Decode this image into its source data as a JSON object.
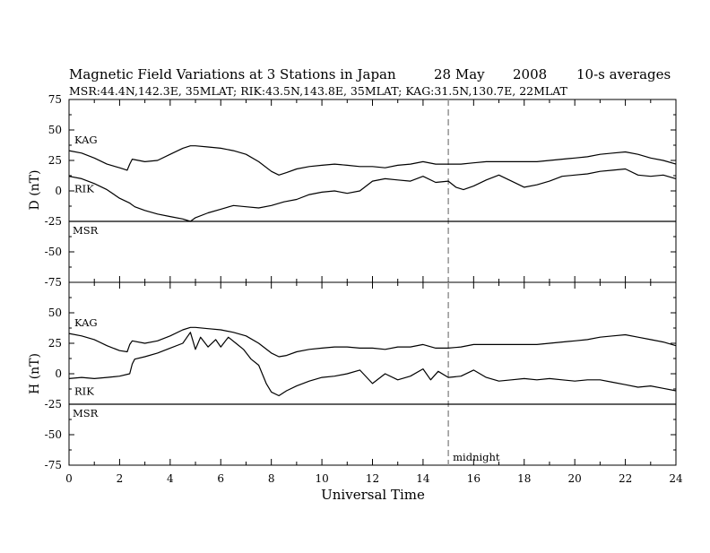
{
  "title": {
    "text": "Magnetic Field Variations at 3 Stations in Japan",
    "date": "28  May",
    "year": "2008",
    "averages": "10-s averages"
  },
  "subtitle": "MSR:44.4N,142.3E, 35MLAT;   RIK:43.5N,143.8E, 35MLAT;   KAG:31.5N,130.7E, 22MLAT",
  "colors": {
    "trace": "#000000",
    "midnight_line": "#9a9a9a",
    "frame": "#000000"
  },
  "chart_data": [
    {
      "type": "line",
      "panel": "D",
      "ylabel": "D (nT)",
      "xlabel": "",
      "xlim": [
        0,
        24
      ],
      "ylim": [
        -75,
        75
      ],
      "yticks": [
        75,
        50,
        25,
        0,
        -25,
        -50,
        -75
      ],
      "xticks": [
        0,
        2,
        4,
        6,
        8,
        10,
        12,
        14,
        16,
        18,
        20,
        22,
        24
      ],
      "grid": false,
      "annotation_marker": {
        "x": 15
      },
      "series": [
        {
          "name": "KAG",
          "x": [
            0,
            0.5,
            1,
            1.5,
            2,
            2.3,
            2.4,
            2.5,
            3,
            3.5,
            4,
            4.5,
            4.8,
            5,
            5.5,
            6,
            6.5,
            7,
            7.5,
            8,
            8.3,
            8.6,
            9,
            9.5,
            10,
            10.5,
            11,
            11.5,
            12,
            12.5,
            13,
            13.5,
            14,
            14.5,
            15,
            15.5,
            16,
            16.5,
            17,
            17.5,
            18,
            18.5,
            19,
            19.5,
            20,
            20.5,
            21,
            21.5,
            22,
            22.5,
            23,
            23.5,
            24
          ],
          "values": [
            33,
            31,
            27,
            22,
            19,
            17,
            22,
            26,
            24,
            25,
            30,
            35,
            37,
            37,
            36,
            35,
            33,
            30,
            24,
            16,
            13,
            15,
            18,
            20,
            21,
            22,
            21,
            20,
            20,
            19,
            21,
            22,
            24,
            22,
            22,
            22,
            23,
            24,
            24,
            24,
            24,
            24,
            25,
            26,
            27,
            28,
            30,
            31,
            32,
            30,
            27,
            25,
            22
          ]
        },
        {
          "name": "RIK",
          "x": [
            0,
            0.5,
            1,
            1.5,
            2,
            2.4,
            2.6,
            3,
            3.5,
            4,
            4.5,
            4.8,
            5,
            5.5,
            6,
            6.5,
            7,
            7.5,
            8,
            8.5,
            9,
            9.5,
            10,
            10.5,
            11,
            11.5,
            12,
            12.5,
            13,
            13.5,
            14,
            14.5,
            15,
            15.3,
            15.6,
            16,
            16.5,
            17,
            17.5,
            18,
            18.5,
            19,
            19.5,
            20,
            20.5,
            21,
            21.5,
            22,
            22.5,
            23,
            23.5,
            24
          ],
          "values": [
            12,
            10,
            6,
            1,
            -6,
            -10,
            -13,
            -16,
            -19,
            -21,
            -23,
            -25,
            -22,
            -18,
            -15,
            -12,
            -13,
            -14,
            -12,
            -9,
            -7,
            -3,
            -1,
            0,
            -2,
            0,
            8,
            10,
            9,
            8,
            12,
            7,
            8,
            3,
            1,
            4,
            9,
            13,
            8,
            3,
            5,
            8,
            12,
            13,
            14,
            16,
            17,
            18,
            13,
            12,
            13,
            10
          ]
        },
        {
          "name": "MSR",
          "x": [
            0,
            24
          ],
          "values": [
            -25,
            -25
          ]
        }
      ]
    },
    {
      "type": "line",
      "panel": "H",
      "ylabel": "H (nT)",
      "xlabel": "Universal Time",
      "xlim": [
        0,
        24
      ],
      "ylim": [
        -75,
        75
      ],
      "yticks": [
        75,
        50,
        25,
        0,
        -25,
        -50,
        -75
      ],
      "xticks": [
        0,
        2,
        4,
        6,
        8,
        10,
        12,
        14,
        16,
        18,
        20,
        22,
        24
      ],
      "grid": false,
      "annotation_marker": {
        "x": 15,
        "label": "midnight"
      },
      "series": [
        {
          "name": "KAG",
          "x": [
            0,
            0.5,
            1,
            1.5,
            2,
            2.3,
            2.4,
            2.5,
            3,
            3.5,
            4,
            4.5,
            4.8,
            5,
            5.5,
            6,
            6.5,
            7,
            7.5,
            8,
            8.3,
            8.6,
            9,
            9.5,
            10,
            10.5,
            11,
            11.5,
            12,
            12.5,
            13,
            13.5,
            14,
            14.5,
            15,
            15.5,
            16,
            16.5,
            17,
            17.5,
            18,
            18.5,
            19,
            19.5,
            20,
            20.5,
            21,
            21.5,
            22,
            22.5,
            23,
            23.5,
            24
          ],
          "values": [
            33,
            31,
            28,
            23,
            19,
            18,
            24,
            27,
            25,
            27,
            31,
            36,
            38,
            38,
            37,
            36,
            34,
            31,
            25,
            17,
            14,
            15,
            18,
            20,
            21,
            22,
            22,
            21,
            21,
            20,
            22,
            22,
            24,
            21,
            21,
            22,
            24,
            24,
            24,
            24,
            24,
            24,
            25,
            26,
            27,
            28,
            30,
            31,
            32,
            30,
            28,
            26,
            23
          ]
        },
        {
          "name": "RIK",
          "x": [
            0,
            0.5,
            1,
            1.5,
            2,
            2.4,
            2.5,
            2.6,
            3,
            3.5,
            4,
            4.5,
            4.8,
            5,
            5.2,
            5.5,
            5.8,
            6,
            6.3,
            6.6,
            6.9,
            7.2,
            7.5,
            7.8,
            8,
            8.3,
            8.6,
            9,
            9.5,
            10,
            10.5,
            11,
            11.5,
            12,
            12.5,
            13,
            13.5,
            14,
            14.3,
            14.6,
            15,
            15.5,
            16,
            16.5,
            17,
            17.5,
            18,
            18.5,
            19,
            19.5,
            20,
            20.5,
            21,
            21.5,
            22,
            22.5,
            23,
            23.5,
            24
          ],
          "values": [
            -4,
            -3,
            -4,
            -3,
            -2,
            0,
            8,
            12,
            14,
            17,
            21,
            25,
            34,
            20,
            30,
            22,
            28,
            22,
            30,
            25,
            20,
            12,
            7,
            -8,
            -15,
            -18,
            -14,
            -10,
            -6,
            -3,
            -2,
            0,
            3,
            -8,
            0,
            -5,
            -2,
            4,
            -5,
            2,
            -3,
            -2,
            3,
            -3,
            -6,
            -5,
            -4,
            -5,
            -4,
            -5,
            -6,
            -5,
            -5,
            -7,
            -9,
            -11,
            -10,
            -12,
            -14
          ]
        },
        {
          "name": "MSR",
          "x": [
            0,
            24
          ],
          "values": [
            -25,
            -25
          ]
        }
      ]
    }
  ]
}
